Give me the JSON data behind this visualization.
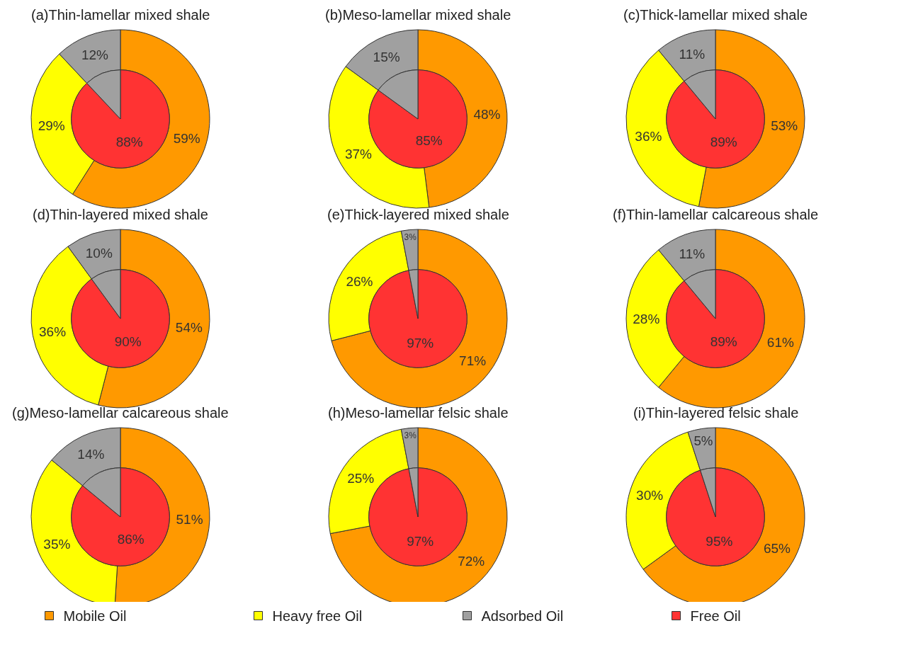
{
  "chart_data": [
    {
      "type": "donut",
      "title": "(a)Thin-lamellar mixed shale",
      "legend": "bottom",
      "categories": [
        "Mobile Oil",
        "Heavy free Oil",
        "Adsorbed Oil"
      ],
      "values": [
        59,
        29,
        12
      ],
      "colors": [
        "#ff9900",
        "#ffff00",
        "#a0a0a0"
      ],
      "value_labels": [
        "59%",
        "29%",
        "12%"
      ]
    },
    {
      "type": "pie",
      "legend": "bottom",
      "categories": [
        "Free Oil",
        null
      ],
      "values": [
        88,
        12
      ],
      "colors": [
        "#ff3333",
        "#a0a0a0"
      ],
      "value_labels": [
        "88%",
        null
      ]
    },
    {
      "type": "donut",
      "title": "(b)Meso-lamellar mixed shale",
      "categories": [
        null,
        null,
        null
      ],
      "values": [
        48,
        37,
        15
      ],
      "colors": [
        "#ff9900",
        "#ffff00",
        "#a0a0a0"
      ],
      "value_labels": [
        "48%",
        "37%",
        "15%"
      ]
    },
    {
      "type": "pie",
      "categories": [
        null,
        null
      ],
      "values": [
        85,
        15
      ],
      "colors": [
        "#ff3333",
        "#a0a0a0"
      ],
      "value_labels": [
        "85%",
        null
      ]
    },
    {
      "type": "donut",
      "title": "(c)Thick-lamellar mixed shale",
      "categories": [
        null,
        null,
        null
      ],
      "values": [
        53,
        36,
        11
      ],
      "colors": [
        "#ff9900",
        "#ffff00",
        "#a0a0a0"
      ],
      "value_labels": [
        "53%",
        "36%",
        "11%"
      ]
    },
    {
      "type": "pie",
      "categories": [
        null,
        null
      ],
      "values": [
        89,
        11
      ],
      "colors": [
        "#ff3333",
        "#a0a0a0"
      ],
      "value_labels": [
        "89%",
        null
      ]
    },
    {
      "type": "donut",
      "title": "(d)Thin-layered mixed shale",
      "categories": [
        null,
        null,
        null
      ],
      "values": [
        54,
        36,
        10
      ],
      "colors": [
        "#ff9900",
        "#ffff00",
        "#a0a0a0"
      ],
      "value_labels": [
        "54%",
        "36%",
        "10%"
      ]
    },
    {
      "type": "pie",
      "categories": [
        null,
        null
      ],
      "values": [
        90,
        10
      ],
      "colors": [
        "#ff3333",
        "#a0a0a0"
      ],
      "value_labels": [
        "90%",
        null
      ]
    },
    {
      "type": "donut",
      "title": "(e)Thick-layered mixed shale",
      "categories": [
        null,
        null,
        null
      ],
      "values": [
        71,
        26,
        3
      ],
      "colors": [
        "#ff9900",
        "#ffff00",
        "#a0a0a0"
      ],
      "value_labels": [
        "71%",
        "26%",
        "3%"
      ]
    },
    {
      "type": "pie",
      "categories": [
        null,
        null
      ],
      "values": [
        97,
        3
      ],
      "colors": [
        "#ff3333",
        "#a0a0a0"
      ],
      "value_labels": [
        "97%",
        null
      ]
    },
    {
      "type": "donut",
      "title": "(f)Thin-lamellar calcareous shale",
      "categories": [
        null,
        null,
        null
      ],
      "values": [
        61,
        28,
        11
      ],
      "colors": [
        "#ff9900",
        "#ffff00",
        "#a0a0a0"
      ],
      "value_labels": [
        "61%",
        "28%",
        "11%"
      ]
    },
    {
      "type": "pie",
      "categories": [
        null,
        null
      ],
      "values": [
        89,
        11
      ],
      "colors": [
        "#ff3333",
        "#a0a0a0"
      ],
      "value_labels": [
        "89%",
        null
      ]
    },
    {
      "type": "donut",
      "title": "(g)Meso-lamellar calcareous shale",
      "categories": [
        null,
        null,
        null
      ],
      "values": [
        51,
        35,
        14
      ],
      "colors": [
        "#ff9900",
        "#ffff00",
        "#a0a0a0"
      ],
      "value_labels": [
        "51%",
        "35%",
        "14%"
      ]
    },
    {
      "type": "pie",
      "categories": [
        null,
        null
      ],
      "values": [
        86,
        14
      ],
      "colors": [
        "#ff3333",
        "#a0a0a0"
      ],
      "value_labels": [
        "86%",
        null
      ]
    },
    {
      "type": "donut",
      "title": "(h)Meso-lamellar felsic shale",
      "categories": [
        null,
        null,
        null
      ],
      "values": [
        72,
        25,
        3
      ],
      "colors": [
        "#ff9900",
        "#ffff00",
        "#a0a0a0"
      ],
      "value_labels": [
        "72%",
        "25%",
        "3%"
      ]
    },
    {
      "type": "pie",
      "categories": [
        null,
        null
      ],
      "values": [
        97,
        3
      ],
      "colors": [
        "#ff3333",
        "#a0a0a0"
      ],
      "value_labels": [
        "97%",
        null
      ]
    },
    {
      "type": "donut",
      "title": "(i)Thin-layered felsic shale",
      "categories": [
        null,
        null,
        null
      ],
      "values": [
        65,
        30,
        5
      ],
      "colors": [
        "#ff9900",
        "#ffff00",
        "#a0a0a0"
      ],
      "value_labels": [
        "65%",
        "30%",
        "5%"
      ]
    },
    {
      "type": "pie",
      "categories": [
        null,
        null
      ],
      "values": [
        95,
        5
      ],
      "colors": [
        "#ff3333",
        "#a0a0a0"
      ],
      "value_labels": [
        "95%",
        null
      ]
    }
  ]
}
